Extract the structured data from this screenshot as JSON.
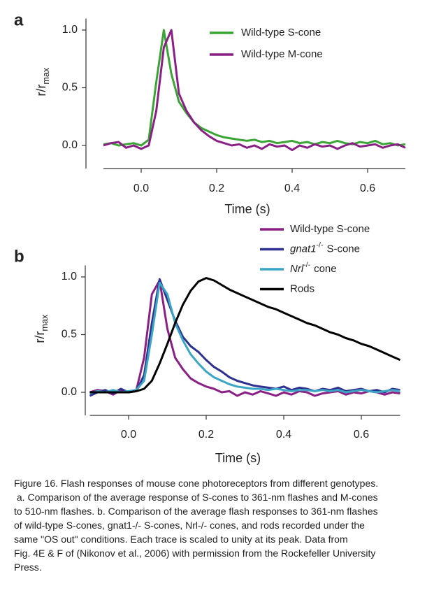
{
  "chart_data": [
    {
      "type": "line",
      "panel_label": "a",
      "xlabel": "Time (s)",
      "ylabel": [
        "r/r",
        "max"
      ],
      "ylabel_styles": [
        "plain",
        "sub"
      ],
      "x": [
        -0.1,
        -0.08,
        -0.06,
        -0.04,
        -0.02,
        0,
        0.02,
        0.04,
        0.06,
        0.08,
        0.1,
        0.12,
        0.14,
        0.16,
        0.18,
        0.2,
        0.22,
        0.24,
        0.26,
        0.28,
        0.3,
        0.32,
        0.34,
        0.36,
        0.38,
        0.4,
        0.42,
        0.44,
        0.46,
        0.48,
        0.5,
        0.52,
        0.54,
        0.56,
        0.58,
        0.6,
        0.62,
        0.64,
        0.66,
        0.68,
        0.7
      ],
      "series": [
        {
          "name": "Wild-type S-cone",
          "color": "#3aa535",
          "values": [
            0.01,
            0.02,
            0.0,
            0.01,
            0.02,
            0.0,
            0.05,
            0.55,
            1.0,
            0.62,
            0.38,
            0.28,
            0.2,
            0.15,
            0.12,
            0.09,
            0.07,
            0.06,
            0.05,
            0.04,
            0.05,
            0.03,
            0.04,
            0.02,
            0.03,
            0.04,
            0.02,
            0.03,
            0.01,
            0.03,
            0.02,
            0.04,
            0.02,
            0.01,
            0.03,
            0.02,
            0.04,
            0.01,
            0.02,
            0.0,
            0.01
          ]
        },
        {
          "name": "Wild-type M-cone",
          "color": "#8a1f86",
          "values": [
            0.0,
            0.02,
            0.03,
            -0.02,
            0.0,
            -0.03,
            0.0,
            0.3,
            0.85,
            1.0,
            0.45,
            0.3,
            0.2,
            0.13,
            0.08,
            0.04,
            0.02,
            0.0,
            0.01,
            -0.02,
            0.0,
            -0.03,
            0.01,
            -0.01,
            0.0,
            -0.04,
            0.0,
            -0.02,
            0.01,
            -0.01,
            0.0,
            -0.03,
            0.0,
            0.02,
            -0.01,
            0.0,
            0.01,
            -0.02,
            0.0,
            0.01,
            -0.02
          ]
        }
      ],
      "xlim": [
        -0.1,
        0.7
      ],
      "xticks": [
        {
          "value": 0,
          "label": "0.0"
        },
        {
          "value": 0.2,
          "label": "0.2"
        },
        {
          "value": 0.4,
          "label": "0.4"
        },
        {
          "value": 0.6,
          "label": "0.6"
        }
      ],
      "ylim": [
        -0.2,
        1.1
      ],
      "yticks": [
        {
          "value": 0,
          "label": "0.0"
        },
        {
          "value": 0.5,
          "label": "0.5"
        },
        {
          "value": 1,
          "label": "1.0"
        }
      ],
      "grid": false,
      "legend": "top-right"
    },
    {
      "type": "line",
      "panel_label": "b",
      "xlabel": "Time (s)",
      "ylabel": [
        "r/r",
        "max"
      ],
      "ylabel_styles": [
        "plain",
        "sub"
      ],
      "x": [
        -0.1,
        -0.08,
        -0.06,
        -0.04,
        -0.02,
        0,
        0.02,
        0.04,
        0.06,
        0.08,
        0.1,
        0.12,
        0.14,
        0.16,
        0.18,
        0.2,
        0.22,
        0.24,
        0.26,
        0.28,
        0.3,
        0.32,
        0.34,
        0.36,
        0.38,
        0.4,
        0.42,
        0.44,
        0.46,
        0.48,
        0.5,
        0.52,
        0.54,
        0.56,
        0.58,
        0.6,
        0.62,
        0.64,
        0.66,
        0.68,
        0.7
      ],
      "series": [
        {
          "name": [
            "Wild-type S-cone"
          ],
          "name_styles": [
            "plain"
          ],
          "color": "#8a1f86",
          "values": [
            0.0,
            0.02,
            0.01,
            -0.02,
            0.02,
            0.0,
            0.02,
            0.3,
            0.85,
            0.97,
            0.55,
            0.3,
            0.2,
            0.12,
            0.08,
            0.05,
            0.03,
            0.0,
            0.01,
            -0.03,
            0.0,
            -0.02,
            0.01,
            -0.01,
            -0.03,
            0.0,
            -0.02,
            0.01,
            0.0,
            -0.03,
            -0.01,
            0.0,
            0.01,
            -0.02,
            0.0,
            -0.01,
            0.01,
            0.0,
            -0.02,
            0.0,
            -0.01
          ]
        },
        {
          "name": [
            "gnat1",
            "-/-",
            "S-cone"
          ],
          "name_styles": [
            "italic",
            "sup",
            "plain"
          ],
          "color": "#2e3190",
          "values": [
            -0.03,
            0.0,
            0.02,
            -0.01,
            0.03,
            0.0,
            0.01,
            0.15,
            0.6,
            0.98,
            0.8,
            0.62,
            0.48,
            0.4,
            0.35,
            0.28,
            0.22,
            0.18,
            0.13,
            0.1,
            0.08,
            0.06,
            0.05,
            0.04,
            0.03,
            0.05,
            0.02,
            0.04,
            0.03,
            0.01,
            0.03,
            0.02,
            0.04,
            0.01,
            0.02,
            0.03,
            0.01,
            0.02,
            0.0,
            0.03,
            0.02
          ]
        },
        {
          "name": [
            "Nrl",
            "-/-",
            "cone"
          ],
          "name_styles": [
            "italic",
            "sup",
            "plain"
          ],
          "color": "#3aa6c4",
          "values": [
            -0.01,
            0.01,
            0.0,
            0.02,
            0.0,
            0.01,
            0.02,
            0.1,
            0.5,
            0.95,
            0.85,
            0.6,
            0.45,
            0.33,
            0.25,
            0.18,
            0.13,
            0.1,
            0.07,
            0.05,
            0.04,
            0.03,
            0.03,
            0.02,
            0.03,
            0.02,
            0.01,
            0.02,
            0.02,
            0.01,
            0.02,
            0.01,
            0.02,
            0.0,
            0.01,
            0.02,
            0.01,
            0.0,
            0.01,
            0.02,
            0.01
          ]
        },
        {
          "name": [
            "Rods"
          ],
          "name_styles": [
            "plain"
          ],
          "color": "#000000",
          "values": [
            0,
            0,
            0,
            0,
            0,
            0,
            0.01,
            0.03,
            0.1,
            0.25,
            0.42,
            0.6,
            0.76,
            0.88,
            0.96,
            0.99,
            0.97,
            0.93,
            0.89,
            0.86,
            0.83,
            0.8,
            0.77,
            0.74,
            0.72,
            0.69,
            0.66,
            0.63,
            0.6,
            0.58,
            0.55,
            0.52,
            0.5,
            0.47,
            0.45,
            0.42,
            0.4,
            0.37,
            0.34,
            0.31,
            0.28
          ]
        }
      ],
      "xlim": [
        -0.1,
        0.7
      ],
      "xticks": [
        {
          "value": 0,
          "label": "0.0"
        },
        {
          "value": 0.2,
          "label": "0.2"
        },
        {
          "value": 0.4,
          "label": "0.4"
        },
        {
          "value": 0.6,
          "label": "0.6"
        }
      ],
      "ylim": [
        -0.2,
        1.1
      ],
      "yticks": [
        {
          "value": 0,
          "label": "0.0"
        },
        {
          "value": 0.5,
          "label": "0.5"
        },
        {
          "value": 1,
          "label": "1.0"
        }
      ],
      "grid": false,
      "legend": "top-right"
    }
  ],
  "caption": [
    "Figure 16. Flash responses of mouse cone photoreceptors from different genotypes.",
    " a. Comparison of the average response of S-cones to 361-nm flashes and M-cones",
    "to 510-nm flashes. b. Comparison of the average flash responses to 361-nm flashes",
    "of wild-type S-cones, gnat1-/- S-cones, Nrl-/- cones, and rods recorded under the",
    "same \"OS out\" conditions. Each trace is scaled to unity at its peak. Data from",
    "Fig. 4E & F of (Nikonov et al., 2006) with permission from the Rockefeller University",
    "Press."
  ]
}
